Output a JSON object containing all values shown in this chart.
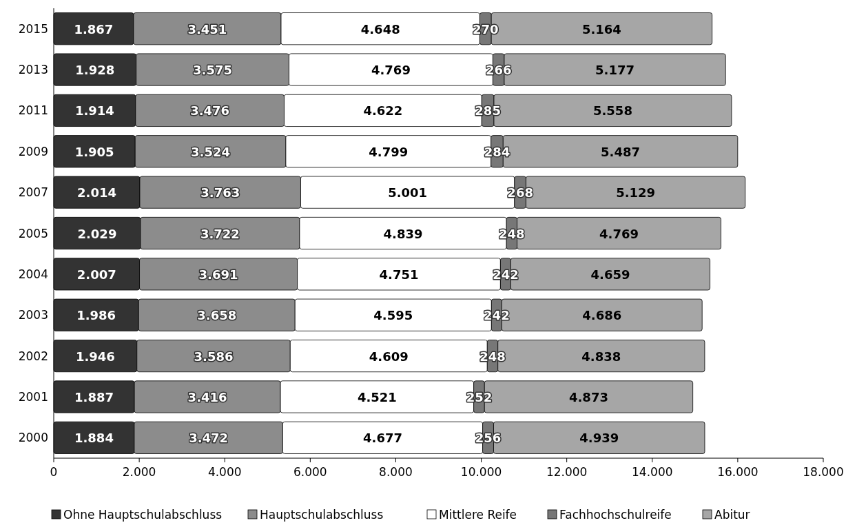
{
  "chart_data": {
    "type": "bar",
    "orientation": "horizontal",
    "stacked": true,
    "categories": [
      "2015",
      "2013",
      "2011",
      "2009",
      "2007",
      "2005",
      "2004",
      "2003",
      "2002",
      "2001",
      "2000"
    ],
    "series": [
      {
        "name": "Ohne Hauptschulabschluss",
        "color": "#333333",
        "values": [
          1867,
          1928,
          1914,
          1905,
          2014,
          2029,
          2007,
          1986,
          1946,
          1887,
          1884
        ],
        "value_labels": [
          "1.867",
          "1.928",
          "1.914",
          "1.905",
          "2.014",
          "2.029",
          "2.007",
          "1.986",
          "1.946",
          "1.887",
          "1.884"
        ]
      },
      {
        "name": "Hauptschulabschluss",
        "color": "#8c8c8c",
        "values": [
          3451,
          3575,
          3476,
          3524,
          3763,
          3722,
          3691,
          3658,
          3586,
          3416,
          3472
        ],
        "value_labels": [
          "3.451",
          "3.575",
          "3.476",
          "3.524",
          "3.763",
          "3.722",
          "3.691",
          "3.658",
          "3.586",
          "3.416",
          "3.472"
        ]
      },
      {
        "name": "Mittlere Reife",
        "color": "#ffffff",
        "values": [
          4648,
          4769,
          4622,
          4799,
          5001,
          4839,
          4751,
          4595,
          4609,
          4521,
          4677
        ],
        "value_labels": [
          "4.648",
          "4.769",
          "4.622",
          "4.799",
          "5.001",
          "4.839",
          "4.751",
          "4.595",
          "4.609",
          "4.521",
          "4.677"
        ]
      },
      {
        "name": "Fachhochschulreife",
        "color": "#777777",
        "values": [
          270,
          266,
          285,
          284,
          268,
          248,
          242,
          242,
          248,
          252,
          256
        ],
        "value_labels": [
          "270",
          "266",
          "285",
          "284",
          "268",
          "248",
          "242",
          "242",
          "248",
          "252",
          "256"
        ]
      },
      {
        "name": "Abitur",
        "color": "#a6a6a6",
        "values": [
          5164,
          5177,
          5558,
          5487,
          5129,
          4769,
          4659,
          4686,
          4838,
          4873,
          4939
        ],
        "value_labels": [
          "5.164",
          "5.177",
          "5.558",
          "5.487",
          "5.129",
          "4.769",
          "4.659",
          "4.686",
          "4.838",
          "4.873",
          "4.939"
        ]
      }
    ],
    "xlim": [
      0,
      18000
    ],
    "xticks": [
      {
        "value": 0,
        "label": "0"
      },
      {
        "value": 2000,
        "label": "2.000"
      },
      {
        "value": 4000,
        "label": "4.000"
      },
      {
        "value": 6000,
        "label": "6.000"
      },
      {
        "value": 8000,
        "label": "8.000"
      },
      {
        "value": 10000,
        "label": "10.000"
      },
      {
        "value": 12000,
        "label": "12.000"
      },
      {
        "value": 14000,
        "label": "14.000"
      },
      {
        "value": 16000,
        "label": "16.000"
      },
      {
        "value": 18000,
        "label": "18.000"
      }
    ],
    "legend": "bottom"
  }
}
